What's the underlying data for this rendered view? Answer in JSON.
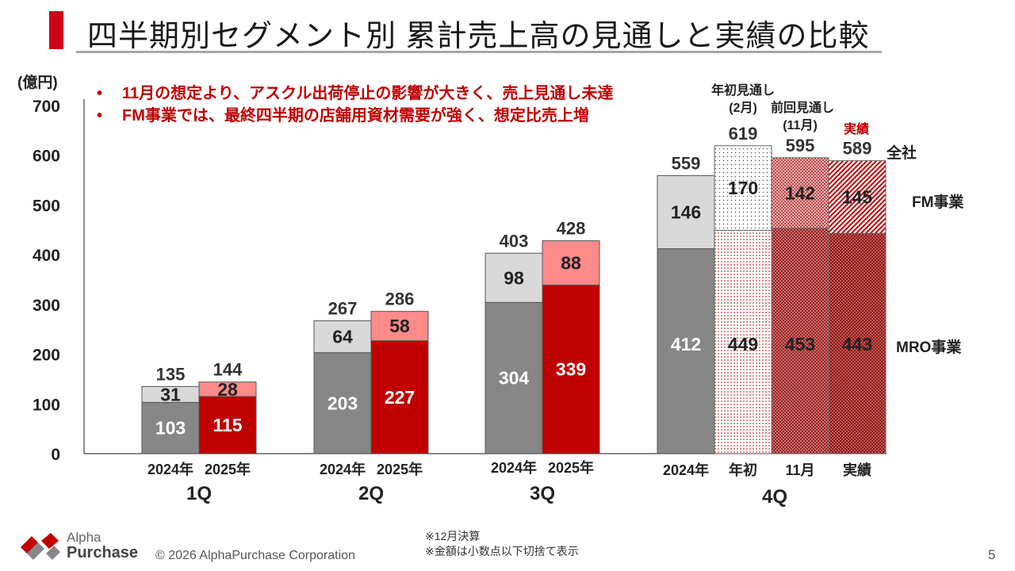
{
  "title": "四半期別セグメント別 累計売上高の見通しと実績の比較",
  "bullets": [
    "11月の想定より、アスクル出荷停止の影響が大きく、売上見通し未達",
    "FM事業では、最終四半期の店舗用資材需要が強く、想定比売上増"
  ],
  "bullet_symbol": "•",
  "footer": {
    "logo_line1": "Alpha",
    "logo_line2": "Purchase",
    "copyright": "© 2026 AlphaPurchase Corporation",
    "notes": [
      "※12月決算",
      "※金額は小数点以下切捨て表示"
    ],
    "page_number": "5"
  },
  "colors": {
    "red": "#c00000",
    "pink": "#ff8a8a",
    "gray_dark": "#878787",
    "gray_light": "#d9d9d9",
    "accent": "#d0021b"
  },
  "chart_data": {
    "type": "bar",
    "stacked": true,
    "title": "",
    "ylabel": "(億円)",
    "ylim": [
      0,
      700
    ],
    "yticks": [
      0,
      100,
      200,
      300,
      400,
      500,
      600,
      700
    ],
    "series_labels": {
      "total": "全社",
      "fm": "FM事業",
      "mro": "MRO事業"
    },
    "header_labels": {
      "initial": [
        "年初見通し",
        "(2月)"
      ],
      "previous": [
        "前回見通し",
        "(11月)"
      ],
      "actual": "実績"
    },
    "groups": [
      {
        "quarter": "1Q",
        "bars": [
          {
            "label": "2024年",
            "style": "gray",
            "mro": 103,
            "fm": 31,
            "total": 135
          },
          {
            "label": "2025年",
            "style": "red",
            "mro": 115,
            "fm": 28,
            "total": 144
          }
        ]
      },
      {
        "quarter": "2Q",
        "bars": [
          {
            "label": "2024年",
            "style": "gray",
            "mro": 203,
            "fm": 64,
            "total": 267
          },
          {
            "label": "2025年",
            "style": "red",
            "mro": 227,
            "fm": 58,
            "total": 286
          }
        ]
      },
      {
        "quarter": "3Q",
        "bars": [
          {
            "label": "2024年",
            "style": "gray",
            "mro": 304,
            "fm": 98,
            "total": 403
          },
          {
            "label": "2025年",
            "style": "red",
            "mro": 339,
            "fm": 88,
            "total": 428
          }
        ]
      },
      {
        "quarter": "4Q",
        "bars": [
          {
            "label": "2024年",
            "style": "gray",
            "mro": 412,
            "fm": 146,
            "total": 559
          },
          {
            "label": "年初",
            "style": "dots",
            "mro": 449,
            "fm": 170,
            "total": 619
          },
          {
            "label": "11月",
            "style": "crosshatch",
            "mro": 453,
            "fm": 142,
            "total": 595
          },
          {
            "label": "実績",
            "style": "diagonal",
            "mro": 443,
            "fm": 145,
            "total": 589
          }
        ]
      }
    ]
  }
}
